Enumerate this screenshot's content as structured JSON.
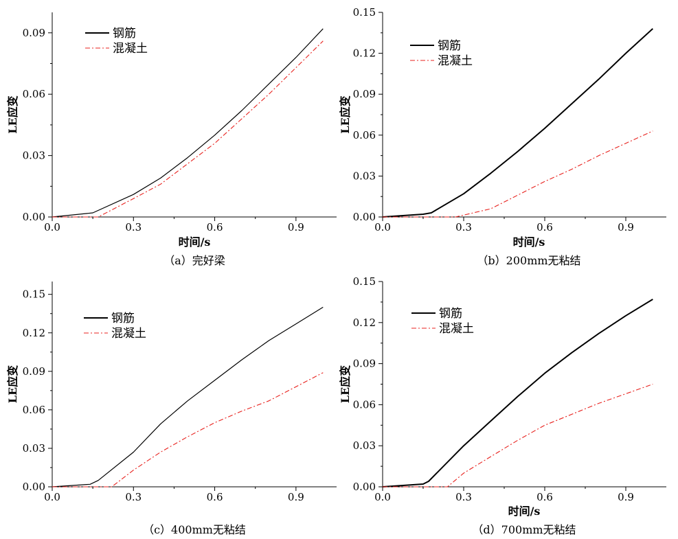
{
  "chart_data": [
    {
      "type": "line",
      "caption": "（a）完好梁",
      "xlabel": "时间/s",
      "ylabel": "LE应变",
      "xlim": [
        0.0,
        1.05
      ],
      "ylim": [
        0.0,
        0.1
      ],
      "xticks": [
        "0.0",
        "0.3",
        "0.6",
        "0.9"
      ],
      "xtick_values": [
        0.0,
        0.3,
        0.6,
        0.9
      ],
      "yticks": [
        "0.00",
        "0.03",
        "0.06",
        "0.09"
      ],
      "ytick_values": [
        0.0,
        0.03,
        0.06,
        0.09
      ],
      "legend_position": "top-left",
      "series": [
        {
          "name": "钢筋",
          "color": "#000000",
          "style": "solid",
          "points": [
            [
              0.0,
              0.0
            ],
            [
              0.15,
              0.002
            ],
            [
              0.3,
              0.011
            ],
            [
              0.4,
              0.019
            ],
            [
              0.5,
              0.029
            ],
            [
              0.6,
              0.04
            ],
            [
              0.7,
              0.052
            ],
            [
              0.8,
              0.065
            ],
            [
              0.9,
              0.078
            ],
            [
              1.0,
              0.092
            ]
          ]
        },
        {
          "name": "混凝土",
          "color": "#e8201c",
          "style": "dashdot",
          "points": [
            [
              0.0,
              0.0
            ],
            [
              0.17,
              0.0
            ],
            [
              0.3,
              0.009
            ],
            [
              0.4,
              0.016
            ],
            [
              0.5,
              0.026
            ],
            [
              0.6,
              0.036
            ],
            [
              0.7,
              0.048
            ],
            [
              0.8,
              0.06
            ],
            [
              0.9,
              0.073
            ],
            [
              1.0,
              0.086
            ]
          ]
        }
      ]
    },
    {
      "type": "line",
      "caption": "（b）200mm无粘结",
      "xlabel": "时间/s",
      "ylabel": "LE应变",
      "xlim": [
        0.0,
        1.05
      ],
      "ylim": [
        0.0,
        0.15
      ],
      "xticks": [
        "0.0",
        "0.3",
        "0.6",
        "0.9"
      ],
      "xtick_values": [
        0.0,
        0.3,
        0.6,
        0.9
      ],
      "yticks": [
        "0.00",
        "0.03",
        "0.06",
        "0.09",
        "0.12",
        "0.15"
      ],
      "ytick_values": [
        0.0,
        0.03,
        0.06,
        0.09,
        0.12,
        0.15
      ],
      "legend_position": "top-left",
      "series": [
        {
          "name": "钢筋",
          "color": "#000000",
          "style": "solid",
          "points": [
            [
              0.0,
              0.0
            ],
            [
              0.15,
              0.002
            ],
            [
              0.18,
              0.003
            ],
            [
              0.3,
              0.017
            ],
            [
              0.4,
              0.032
            ],
            [
              0.5,
              0.048
            ],
            [
              0.6,
              0.065
            ],
            [
              0.7,
              0.083
            ],
            [
              0.8,
              0.101
            ],
            [
              0.9,
              0.12
            ],
            [
              1.0,
              0.138
            ]
          ]
        },
        {
          "name": "混凝土",
          "color": "#e8201c",
          "style": "dashdot",
          "points": [
            [
              0.0,
              0.0
            ],
            [
              0.27,
              0.0
            ],
            [
              0.4,
              0.006
            ],
            [
              0.5,
              0.016
            ],
            [
              0.6,
              0.026
            ],
            [
              0.7,
              0.035
            ],
            [
              0.8,
              0.045
            ],
            [
              0.9,
              0.054
            ],
            [
              1.0,
              0.063
            ]
          ]
        }
      ]
    },
    {
      "type": "line",
      "caption": "（c）400mm无粘结",
      "xlabel": "",
      "ylabel": "LE应变",
      "xlim": [
        0.0,
        1.05
      ],
      "ylim": [
        0.0,
        0.16
      ],
      "xticks": [
        "0.0",
        "0.3",
        "0.6",
        "0.9"
      ],
      "xtick_values": [
        0.0,
        0.3,
        0.6,
        0.9
      ],
      "yticks": [
        "0.00",
        "0.03",
        "0.06",
        "0.09",
        "0.12",
        "0.15"
      ],
      "ytick_values": [
        0.0,
        0.03,
        0.06,
        0.09,
        0.12,
        0.15
      ],
      "legend_position": "top-left",
      "series": [
        {
          "name": "钢筋",
          "color": "#000000",
          "style": "solid",
          "points": [
            [
              0.0,
              0.0
            ],
            [
              0.14,
              0.002
            ],
            [
              0.17,
              0.005
            ],
            [
              0.3,
              0.027
            ],
            [
              0.4,
              0.049
            ],
            [
              0.5,
              0.067
            ],
            [
              0.6,
              0.083
            ],
            [
              0.7,
              0.099
            ],
            [
              0.8,
              0.114
            ],
            [
              0.9,
              0.127
            ],
            [
              1.0,
              0.14
            ]
          ]
        },
        {
          "name": "混凝土",
          "color": "#e8201c",
          "style": "dashdot",
          "points": [
            [
              0.0,
              0.0
            ],
            [
              0.22,
              0.0
            ],
            [
              0.3,
              0.013
            ],
            [
              0.4,
              0.027
            ],
            [
              0.5,
              0.039
            ],
            [
              0.6,
              0.05
            ],
            [
              0.7,
              0.059
            ],
            [
              0.8,
              0.067
            ],
            [
              0.9,
              0.078
            ],
            [
              1.0,
              0.089
            ]
          ]
        }
      ]
    },
    {
      "type": "line",
      "caption": "（d）700mm无粘结",
      "xlabel": "时间/s",
      "ylabel": "LE应变",
      "xlim": [
        0.0,
        1.05
      ],
      "ylim": [
        0.0,
        0.15
      ],
      "xticks": [
        "0.0",
        "0.3",
        "0.6",
        "0.9"
      ],
      "xtick_values": [
        0.0,
        0.3,
        0.6,
        0.9
      ],
      "yticks": [
        "0.00",
        "0.03",
        "0.06",
        "0.09",
        "0.12",
        "0.15"
      ],
      "ytick_values": [
        0.0,
        0.03,
        0.06,
        0.09,
        0.12,
        0.15
      ],
      "legend_position": "top-left",
      "series": [
        {
          "name": "钢筋",
          "color": "#000000",
          "style": "solid",
          "points": [
            [
              0.0,
              0.0
            ],
            [
              0.15,
              0.002
            ],
            [
              0.17,
              0.004
            ],
            [
              0.3,
              0.03
            ],
            [
              0.4,
              0.048
            ],
            [
              0.5,
              0.066
            ],
            [
              0.6,
              0.083
            ],
            [
              0.7,
              0.098
            ],
            [
              0.8,
              0.112
            ],
            [
              0.9,
              0.125
            ],
            [
              1.0,
              0.137
            ]
          ]
        },
        {
          "name": "混凝土",
          "color": "#e8201c",
          "style": "dashdot",
          "points": [
            [
              0.0,
              0.0
            ],
            [
              0.24,
              0.0
            ],
            [
              0.3,
              0.01
            ],
            [
              0.4,
              0.022
            ],
            [
              0.5,
              0.034
            ],
            [
              0.6,
              0.045
            ],
            [
              0.7,
              0.053
            ],
            [
              0.8,
              0.061
            ],
            [
              0.9,
              0.068
            ],
            [
              1.0,
              0.075
            ]
          ]
        }
      ]
    }
  ]
}
